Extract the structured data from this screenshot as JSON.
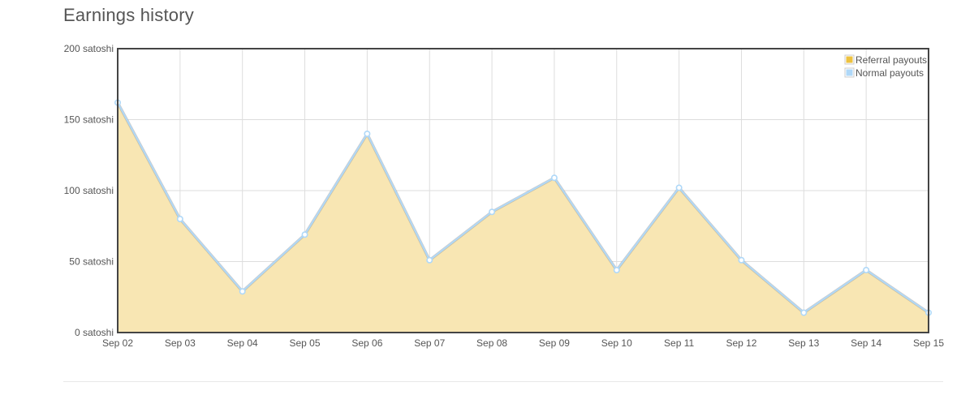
{
  "page": {
    "title": "Earnings history"
  },
  "chart_data": {
    "type": "area",
    "x": [
      "Sep 02",
      "Sep 03",
      "Sep 04",
      "Sep 05",
      "Sep 06",
      "Sep 07",
      "Sep 08",
      "Sep 09",
      "Sep 10",
      "Sep 11",
      "Sep 12",
      "Sep 13",
      "Sep 14",
      "Sep 15"
    ],
    "series": [
      {
        "name": "Referral payouts",
        "color": "#EDC240",
        "values": [
          0,
          0,
          0,
          0,
          0,
          0,
          0,
          0,
          0,
          0,
          0,
          0,
          0,
          0
        ]
      },
      {
        "name": "Normal payouts",
        "color": "#AFD8F8",
        "values": [
          162,
          80,
          29,
          69,
          140,
          51,
          85,
          109,
          44,
          102,
          51,
          14,
          44,
          14
        ]
      }
    ],
    "area_fill_color": "#F8E6B3",
    "y_unit": "satoshi",
    "y_ticks": [
      "0 satoshi",
      "50 satoshi",
      "100 satoshi",
      "150 satoshi",
      "200 satoshi"
    ],
    "ylim": [
      0,
      200
    ],
    "grid": true,
    "legend_position": "top-right",
    "xlabel": "",
    "ylabel": ""
  }
}
